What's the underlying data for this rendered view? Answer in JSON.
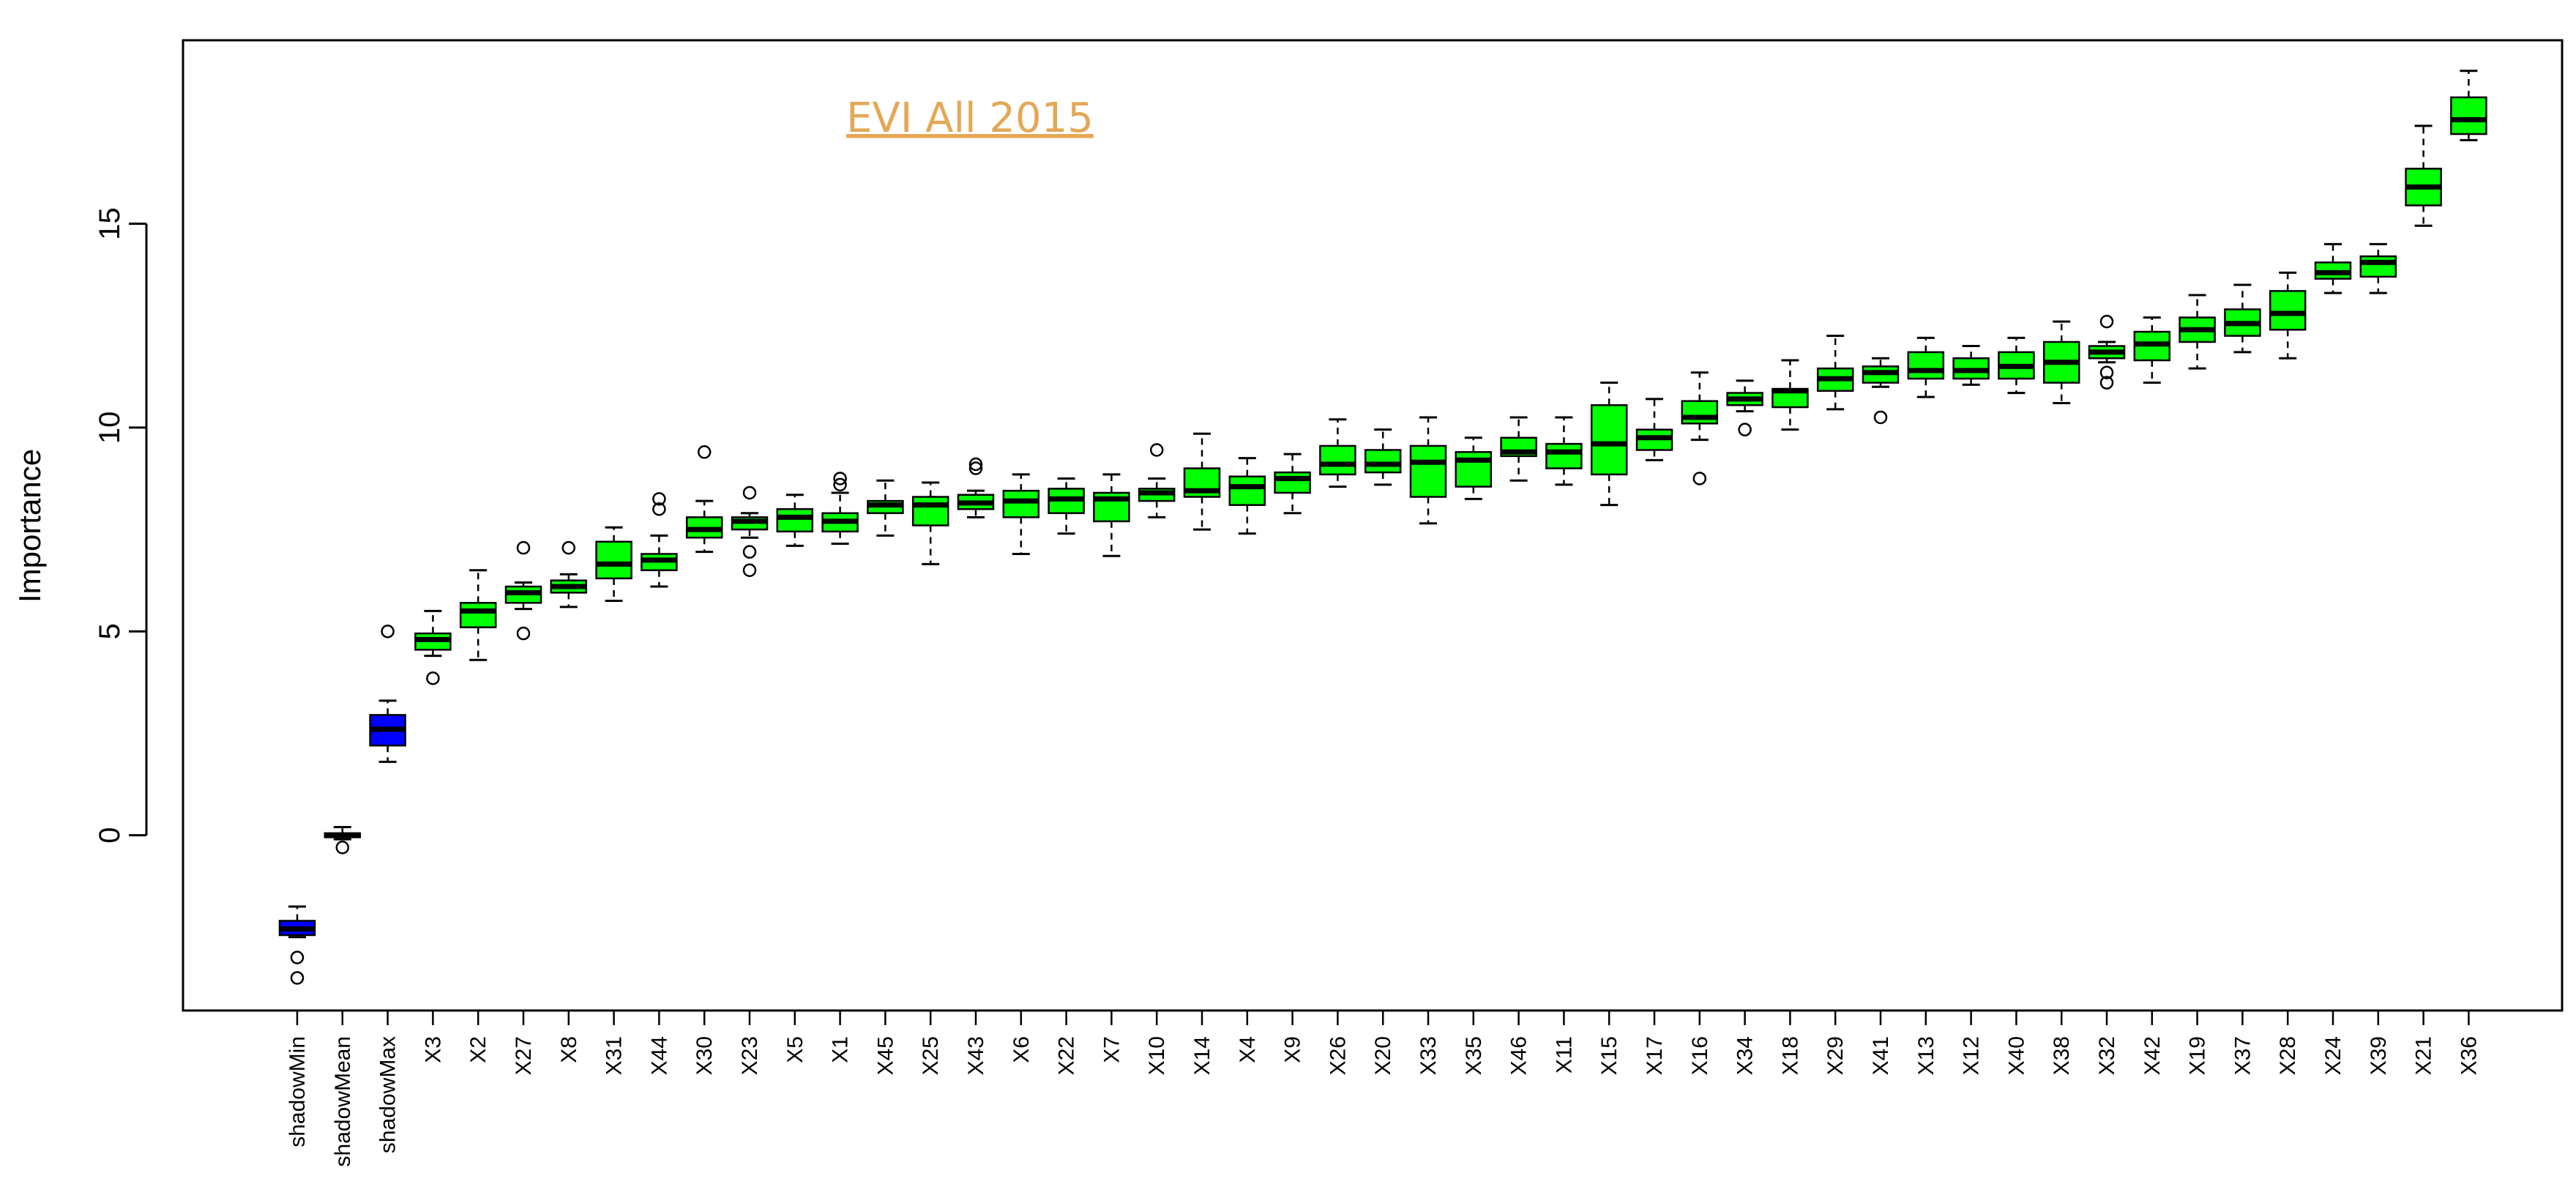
{
  "chart_data": {
    "type": "boxplot",
    "title": "EVI All 2015",
    "ylabel": "Importance",
    "xlabel": "",
    "ylim": [
      -4.3,
      19.5
    ],
    "yticks": [
      0,
      5,
      10,
      15
    ],
    "grid": false,
    "legend": "none",
    "colors": {
      "shadow": "#0000ff",
      "feature": "#00ff00",
      "title": "#e3a857",
      "line": "#000000"
    },
    "categories": [
      "shadowMin",
      "shadowMean",
      "shadowMax",
      "X3",
      "X2",
      "X27",
      "X8",
      "X31",
      "X44",
      "X30",
      "X23",
      "X5",
      "X1",
      "X45",
      "X25",
      "X43",
      "X6",
      "X22",
      "X7",
      "X10",
      "X14",
      "X4",
      "X9",
      "X26",
      "X20",
      "X33",
      "X35",
      "X46",
      "X11",
      "X15",
      "X17",
      "X16",
      "X34",
      "X18",
      "X29",
      "X41",
      "X13",
      "X12",
      "X40",
      "X38",
      "X32",
      "X42",
      "X19",
      "X37",
      "X28",
      "X24",
      "X39",
      "X21",
      "X36"
    ],
    "boxes": [
      {
        "group": "shadow",
        "wlo": -2.5,
        "q1": -2.45,
        "med": -2.3,
        "q3": -2.1,
        "whi": -1.75,
        "outliers": [
          -3.0,
          -3.5
        ]
      },
      {
        "group": "shadow",
        "wlo": -0.1,
        "q1": -0.05,
        "med": 0.0,
        "q3": 0.05,
        "whi": 0.2,
        "outliers": [
          -0.3
        ]
      },
      {
        "group": "shadow",
        "wlo": 1.8,
        "q1": 2.2,
        "med": 2.6,
        "q3": 2.95,
        "whi": 3.3,
        "outliers": [
          5.0
        ]
      },
      {
        "group": "feature",
        "wlo": 4.4,
        "q1": 4.55,
        "med": 4.8,
        "q3": 4.95,
        "whi": 5.5,
        "outliers": [
          3.85
        ]
      },
      {
        "group": "feature",
        "wlo": 4.3,
        "q1": 5.1,
        "med": 5.5,
        "q3": 5.7,
        "whi": 6.5,
        "outliers": []
      },
      {
        "group": "feature",
        "wlo": 5.55,
        "q1": 5.7,
        "med": 5.95,
        "q3": 6.1,
        "whi": 6.2,
        "outliers": [
          7.05,
          4.95
        ]
      },
      {
        "group": "feature",
        "wlo": 5.6,
        "q1": 5.95,
        "med": 6.1,
        "q3": 6.25,
        "whi": 6.4,
        "outliers": [
          7.05
        ]
      },
      {
        "group": "feature",
        "wlo": 5.75,
        "q1": 6.3,
        "med": 6.65,
        "q3": 7.2,
        "whi": 7.55,
        "outliers": []
      },
      {
        "group": "feature",
        "wlo": 6.1,
        "q1": 6.5,
        "med": 6.75,
        "q3": 6.9,
        "whi": 7.35,
        "outliers": [
          8.25,
          8.0
        ]
      },
      {
        "group": "feature",
        "wlo": 6.95,
        "q1": 7.3,
        "med": 7.5,
        "q3": 7.8,
        "whi": 8.2,
        "outliers": [
          9.4
        ]
      },
      {
        "group": "feature",
        "wlo": 7.3,
        "q1": 7.5,
        "med": 7.7,
        "q3": 7.8,
        "whi": 7.9,
        "outliers": [
          8.4,
          6.95,
          6.5
        ]
      },
      {
        "group": "feature",
        "wlo": 7.1,
        "q1": 7.45,
        "med": 7.8,
        "q3": 8.0,
        "whi": 8.35,
        "outliers": []
      },
      {
        "group": "feature",
        "wlo": 7.15,
        "q1": 7.45,
        "med": 7.7,
        "q3": 7.9,
        "whi": 8.4,
        "outliers": [
          8.75,
          8.6
        ]
      },
      {
        "group": "feature",
        "wlo": 7.35,
        "q1": 7.9,
        "med": 8.1,
        "q3": 8.2,
        "whi": 8.7,
        "outliers": []
      },
      {
        "group": "feature",
        "wlo": 6.65,
        "q1": 7.6,
        "med": 8.1,
        "q3": 8.3,
        "whi": 8.65,
        "outliers": []
      },
      {
        "group": "feature",
        "wlo": 7.8,
        "q1": 8.0,
        "med": 8.15,
        "q3": 8.35,
        "whi": 8.45,
        "outliers": [
          9.1,
          9.0
        ]
      },
      {
        "group": "feature",
        "wlo": 6.9,
        "q1": 7.8,
        "med": 8.2,
        "q3": 8.45,
        "whi": 8.85,
        "outliers": []
      },
      {
        "group": "feature",
        "wlo": 7.4,
        "q1": 7.9,
        "med": 8.25,
        "q3": 8.5,
        "whi": 8.75,
        "outliers": []
      },
      {
        "group": "feature",
        "wlo": 6.85,
        "q1": 7.7,
        "med": 8.25,
        "q3": 8.4,
        "whi": 8.85,
        "outliers": []
      },
      {
        "group": "feature",
        "wlo": 7.8,
        "q1": 8.2,
        "med": 8.4,
        "q3": 8.5,
        "whi": 8.75,
        "outliers": [
          9.45
        ]
      },
      {
        "group": "feature",
        "wlo": 7.5,
        "q1": 8.3,
        "med": 8.45,
        "q3": 9.0,
        "whi": 9.85,
        "outliers": []
      },
      {
        "group": "feature",
        "wlo": 7.4,
        "q1": 8.1,
        "med": 8.55,
        "q3": 8.8,
        "whi": 9.25,
        "outliers": []
      },
      {
        "group": "feature",
        "wlo": 7.9,
        "q1": 8.4,
        "med": 8.75,
        "q3": 8.9,
        "whi": 9.35,
        "outliers": []
      },
      {
        "group": "feature",
        "wlo": 8.55,
        "q1": 8.85,
        "med": 9.1,
        "q3": 9.55,
        "whi": 10.2,
        "outliers": []
      },
      {
        "group": "feature",
        "wlo": 8.6,
        "q1": 8.9,
        "med": 9.1,
        "q3": 9.45,
        "whi": 9.95,
        "outliers": []
      },
      {
        "group": "feature",
        "wlo": 7.65,
        "q1": 8.3,
        "med": 9.15,
        "q3": 9.55,
        "whi": 10.25,
        "outliers": []
      },
      {
        "group": "feature",
        "wlo": 8.25,
        "q1": 8.55,
        "med": 9.2,
        "q3": 9.4,
        "whi": 9.75,
        "outliers": []
      },
      {
        "group": "feature",
        "wlo": 8.7,
        "q1": 9.3,
        "med": 9.4,
        "q3": 9.75,
        "whi": 10.25,
        "outliers": []
      },
      {
        "group": "feature",
        "wlo": 8.6,
        "q1": 9.0,
        "med": 9.4,
        "q3": 9.6,
        "whi": 10.25,
        "outliers": []
      },
      {
        "group": "feature",
        "wlo": 8.1,
        "q1": 8.85,
        "med": 9.6,
        "q3": 10.55,
        "whi": 11.1,
        "outliers": []
      },
      {
        "group": "feature",
        "wlo": 9.2,
        "q1": 9.45,
        "med": 9.75,
        "q3": 9.95,
        "whi": 10.7,
        "outliers": []
      },
      {
        "group": "feature",
        "wlo": 9.7,
        "q1": 10.1,
        "med": 10.25,
        "q3": 10.65,
        "whi": 11.35,
        "outliers": [
          8.75
        ]
      },
      {
        "group": "feature",
        "wlo": 10.4,
        "q1": 10.55,
        "med": 10.7,
        "q3": 10.85,
        "whi": 11.15,
        "outliers": [
          9.95
        ]
      },
      {
        "group": "feature",
        "wlo": 9.95,
        "q1": 10.5,
        "med": 10.9,
        "q3": 10.95,
        "whi": 11.65,
        "outliers": []
      },
      {
        "group": "feature",
        "wlo": 10.45,
        "q1": 10.9,
        "med": 11.2,
        "q3": 11.45,
        "whi": 12.25,
        "outliers": []
      },
      {
        "group": "feature",
        "wlo": 11.0,
        "q1": 11.1,
        "med": 11.35,
        "q3": 11.5,
        "whi": 11.7,
        "outliers": [
          10.25
        ]
      },
      {
        "group": "feature",
        "wlo": 10.75,
        "q1": 11.2,
        "med": 11.4,
        "q3": 11.85,
        "whi": 12.2,
        "outliers": []
      },
      {
        "group": "feature",
        "wlo": 11.05,
        "q1": 11.2,
        "med": 11.4,
        "q3": 11.7,
        "whi": 12.0,
        "outliers": []
      },
      {
        "group": "feature",
        "wlo": 10.85,
        "q1": 11.2,
        "med": 11.5,
        "q3": 11.85,
        "whi": 12.2,
        "outliers": []
      },
      {
        "group": "feature",
        "wlo": 10.6,
        "q1": 11.1,
        "med": 11.6,
        "q3": 12.1,
        "whi": 12.6,
        "outliers": []
      },
      {
        "group": "feature",
        "wlo": 11.6,
        "q1": 11.7,
        "med": 11.85,
        "q3": 12.0,
        "whi": 12.1,
        "outliers": [
          12.6,
          11.35,
          11.1
        ]
      },
      {
        "group": "feature",
        "wlo": 11.1,
        "q1": 11.65,
        "med": 12.05,
        "q3": 12.35,
        "whi": 12.7,
        "outliers": []
      },
      {
        "group": "feature",
        "wlo": 11.45,
        "q1": 12.1,
        "med": 12.4,
        "q3": 12.7,
        "whi": 13.25,
        "outliers": []
      },
      {
        "group": "feature",
        "wlo": 11.85,
        "q1": 12.25,
        "med": 12.55,
        "q3": 12.9,
        "whi": 13.5,
        "outliers": []
      },
      {
        "group": "feature",
        "wlo": 11.7,
        "q1": 12.4,
        "med": 12.8,
        "q3": 13.35,
        "whi": 13.8,
        "outliers": []
      },
      {
        "group": "feature",
        "wlo": 13.3,
        "q1": 13.65,
        "med": 13.8,
        "q3": 14.05,
        "whi": 14.5,
        "outliers": []
      },
      {
        "group": "feature",
        "wlo": 13.3,
        "q1": 13.7,
        "med": 14.05,
        "q3": 14.2,
        "whi": 14.5,
        "outliers": []
      },
      {
        "group": "feature",
        "wlo": 14.95,
        "q1": 15.45,
        "med": 15.9,
        "q3": 16.35,
        "whi": 17.4,
        "outliers": []
      },
      {
        "group": "feature",
        "wlo": 17.05,
        "q1": 17.2,
        "med": 17.55,
        "q3": 18.1,
        "whi": 18.75,
        "outliers": []
      }
    ]
  }
}
